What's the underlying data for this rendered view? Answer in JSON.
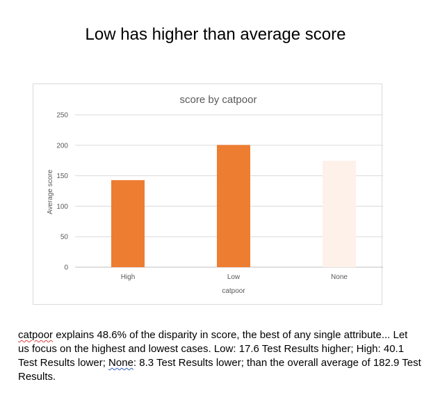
{
  "page": {
    "title": "Low has higher than average score"
  },
  "chart_data": {
    "type": "bar",
    "title": "score by catpoor",
    "xlabel": "catpoor",
    "ylabel": "Average score",
    "categories": [
      "High",
      "Low",
      "None"
    ],
    "values": [
      142.8,
      200.5,
      174.6
    ],
    "colors": [
      "#ed7d31",
      "#ed7d31",
      "#fdf1ea"
    ],
    "ylim": [
      0,
      250
    ],
    "yticks": [
      0,
      50,
      100,
      150,
      200,
      250
    ],
    "grid": true,
    "legend": "none"
  },
  "summary": {
    "word_catpoor": "catpoor",
    "sentence_1": " explains 48.6% of the disparity in score, the best of any single attribute... Let us focus on the highest and lowest cases. Low: 17.6 Test Results higher; High: 40.1 Test Results lower; ",
    "word_none": "None",
    "sentence_2": ": 8.3 Test Results lower; than the overall average of 182.9 Test Results."
  }
}
